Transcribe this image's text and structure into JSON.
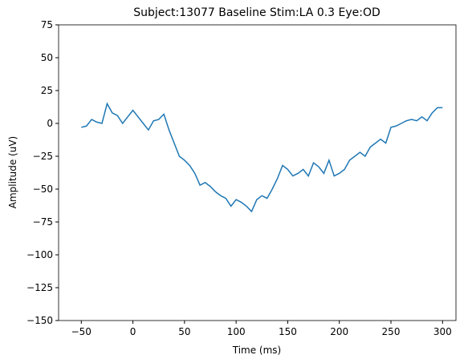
{
  "chart_data": {
    "type": "line",
    "title": "Subject:13077 Baseline Stim:LA 0.3 Eye:OD",
    "x_label": "Time (ms)",
    "y_label": "Amplitude (uV)",
    "x": [
      -50,
      -45,
      -40,
      -35,
      -30,
      -25,
      -20,
      -15,
      -10,
      -5,
      0,
      5,
      10,
      15,
      20,
      25,
      30,
      35,
      40,
      45,
      50,
      55,
      60,
      65,
      70,
      75,
      80,
      85,
      90,
      95,
      100,
      105,
      110,
      115,
      120,
      125,
      130,
      135,
      140,
      145,
      150,
      155,
      160,
      165,
      170,
      175,
      180,
      185,
      190,
      195,
      200,
      205,
      210,
      215,
      220,
      225,
      230,
      235,
      240,
      245,
      250,
      255,
      260,
      265,
      270,
      275,
      280,
      285,
      290,
      295,
      300
    ],
    "series": [
      {
        "name": "Amplitude",
        "color": "#1f77b4",
        "values": [
          -3,
          -2,
          3,
          1,
          0,
          15,
          8,
          6,
          0,
          5,
          10,
          5,
          0,
          -5,
          2,
          3,
          7,
          -5,
          -15,
          -25,
          -28,
          -32,
          -38,
          -47,
          -45,
          -48,
          -52,
          -55,
          -57,
          -63,
          -58,
          -60,
          -63,
          -67,
          -58,
          -55,
          -57,
          -50,
          -42,
          -32,
          -35,
          -40,
          -38,
          -35,
          -40,
          -30,
          -33,
          -38,
          -28,
          -40,
          -38,
          -35,
          -28,
          -25,
          -22,
          -25,
          -18,
          -15,
          -12,
          -15,
          -3,
          -2,
          0,
          2,
          3,
          2,
          5,
          2,
          8,
          12,
          12
        ]
      }
    ],
    "xlim": [
      -72,
      313
    ],
    "ylim": [
      -150,
      75
    ],
    "xticks": [
      {
        "value": -50,
        "label": "−50"
      },
      0,
      50,
      100,
      150,
      200,
      250,
      300
    ],
    "yticks": [
      {
        "value": -150,
        "label": "−150"
      },
      {
        "value": -125,
        "label": "−125"
      },
      {
        "value": -100,
        "label": "−100"
      },
      {
        "value": -75,
        "label": "−75"
      },
      {
        "value": -50,
        "label": "−50"
      },
      {
        "value": -25,
        "label": "−25"
      },
      0,
      25,
      50,
      75
    ]
  }
}
